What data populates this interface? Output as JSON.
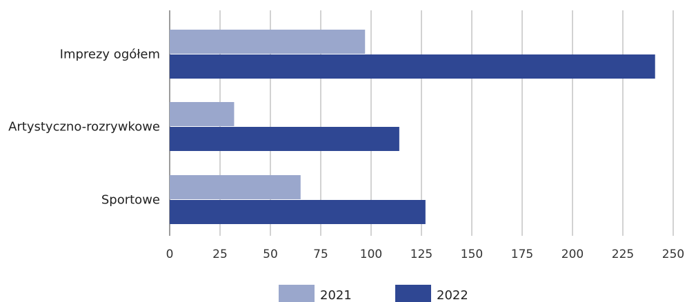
{
  "chart_data": {
    "type": "bar",
    "orientation": "horizontal",
    "categories": [
      "Imprezy ogółem",
      "Artystyczno-rozrywkowe",
      "Sportowe"
    ],
    "series": [
      {
        "name": "2021",
        "values": [
          97,
          32,
          65
        ],
        "color": "#9aa7cc"
      },
      {
        "name": "2022",
        "values": [
          241,
          114,
          127
        ],
        "color": "#2f4793"
      }
    ],
    "xlim": [
      0,
      250
    ],
    "xticks": [
      0,
      25,
      50,
      75,
      100,
      125,
      150,
      175,
      200,
      225,
      250
    ],
    "grid": "vertical",
    "legend": "bottom-center",
    "title": "",
    "xlabel": "",
    "ylabel": ""
  }
}
